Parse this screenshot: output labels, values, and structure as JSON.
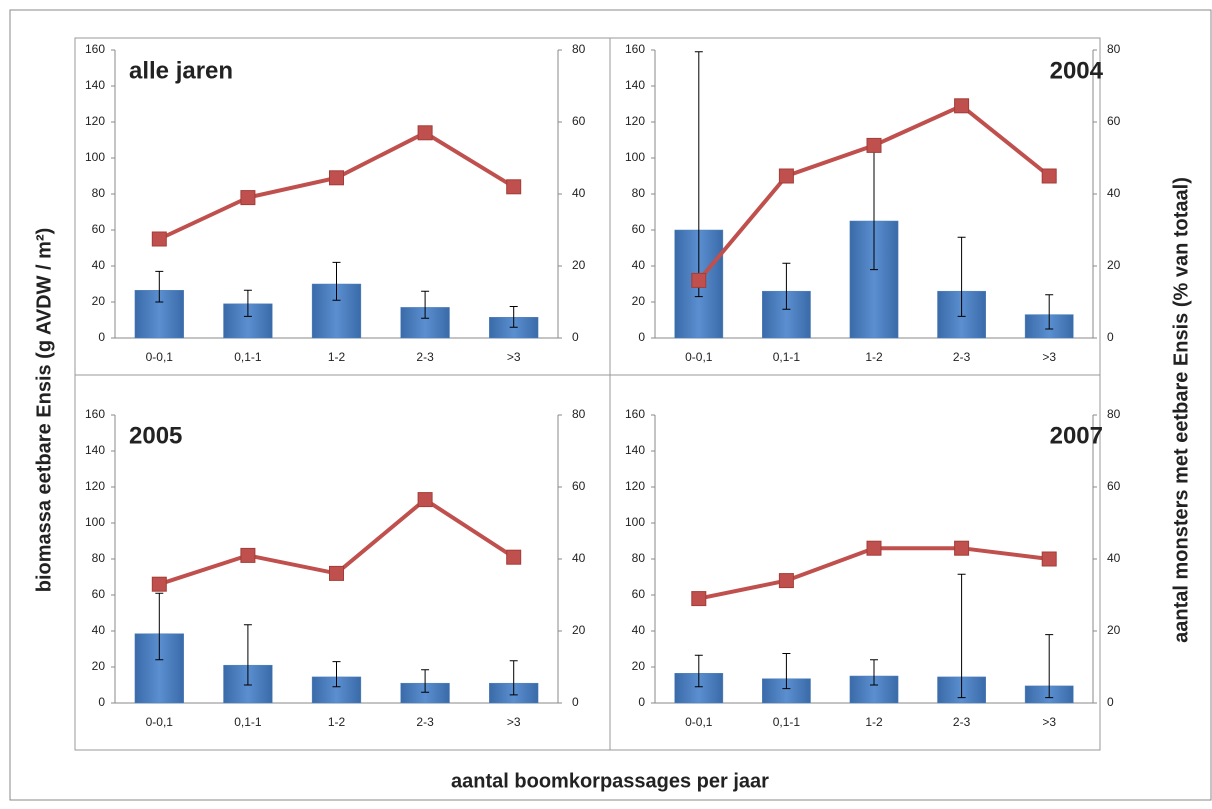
{
  "y_label": "biomassa eetbare Ensis (g AVDW / m²)",
  "y2_label": "aantal monsters met eetbare Ensis (% van totaal)",
  "x_label": "aantal boomkorpassages per jaar",
  "chart_data": [
    {
      "type": "bar_line",
      "title": "alle jaren",
      "title_align": "left",
      "categories": [
        "0-0,1",
        "0,1-1",
        "1-2",
        "2-3",
        ">3"
      ],
      "ylim": [
        0,
        160
      ],
      "yticks": [
        0,
        20,
        40,
        60,
        80,
        100,
        120,
        140,
        160
      ],
      "y2lim": [
        0,
        80
      ],
      "y2ticks": [
        0,
        20,
        40,
        60,
        80
      ],
      "series": [
        {
          "kind": "bar",
          "color": "#4f81bd",
          "values": [
            26.5,
            19,
            30,
            17,
            11.5
          ],
          "error_minus": [
            6.5,
            7,
            9,
            6,
            5.5
          ],
          "error_plus": [
            10.5,
            7.5,
            12,
            9,
            6
          ]
        },
        {
          "kind": "line",
          "axis": "y2",
          "color": "#c0504d",
          "values": [
            27.5,
            39,
            44.5,
            57,
            42
          ]
        }
      ]
    },
    {
      "type": "bar_line",
      "title": "2004",
      "title_align": "right",
      "categories": [
        "0-0,1",
        "0,1-1",
        "1-2",
        "2-3",
        ">3"
      ],
      "ylim": [
        0,
        160
      ],
      "yticks": [
        0,
        20,
        40,
        60,
        80,
        100,
        120,
        140,
        160
      ],
      "y2lim": [
        0,
        80
      ],
      "y2ticks": [
        0,
        20,
        40,
        60,
        80
      ],
      "series": [
        {
          "kind": "bar",
          "color": "#4f81bd",
          "values": [
            60,
            26,
            65,
            26,
            13
          ],
          "error_minus": [
            37,
            10,
            27,
            14,
            8
          ],
          "error_plus": [
            99,
            15.5,
            40,
            30,
            11
          ]
        },
        {
          "kind": "line",
          "axis": "y2",
          "color": "#c0504d",
          "values": [
            16,
            45,
            53.5,
            64.5,
            45
          ]
        }
      ]
    },
    {
      "type": "bar_line",
      "title": "2005",
      "title_align": "left",
      "categories": [
        "0-0,1",
        "0,1-1",
        "1-2",
        "2-3",
        ">3"
      ],
      "ylim": [
        0,
        160
      ],
      "yticks": [
        0,
        20,
        40,
        60,
        80,
        100,
        120,
        140,
        160
      ],
      "y2lim": [
        0,
        80
      ],
      "y2ticks": [
        0,
        20,
        40,
        60,
        80
      ],
      "series": [
        {
          "kind": "bar",
          "color": "#4f81bd",
          "values": [
            38.5,
            21,
            14.5,
            11,
            11
          ],
          "error_minus": [
            14.5,
            11,
            5.5,
            5,
            6.5
          ],
          "error_plus": [
            22.5,
            22.5,
            8.5,
            7.5,
            12.5
          ]
        },
        {
          "kind": "line",
          "axis": "y2",
          "color": "#c0504d",
          "values": [
            33,
            41,
            36,
            56.5,
            40.5
          ]
        }
      ]
    },
    {
      "type": "bar_line",
      "title": "2007",
      "title_align": "right",
      "categories": [
        "0-0,1",
        "0,1-1",
        "1-2",
        "2-3",
        ">3"
      ],
      "ylim": [
        0,
        160
      ],
      "yticks": [
        0,
        20,
        40,
        60,
        80,
        100,
        120,
        140,
        160
      ],
      "y2lim": [
        0,
        80
      ],
      "y2ticks": [
        0,
        20,
        40,
        60,
        80
      ],
      "series": [
        {
          "kind": "bar",
          "color": "#4f81bd",
          "values": [
            16.5,
            13.5,
            15,
            14.5,
            9.5
          ],
          "error_minus": [
            7.5,
            5.5,
            5,
            11.5,
            6.5
          ],
          "error_plus": [
            10,
            14,
            9,
            57,
            28.5
          ]
        },
        {
          "kind": "line",
          "axis": "y2",
          "color": "#c0504d",
          "values": [
            29,
            34,
            43,
            43,
            40
          ]
        }
      ]
    }
  ]
}
